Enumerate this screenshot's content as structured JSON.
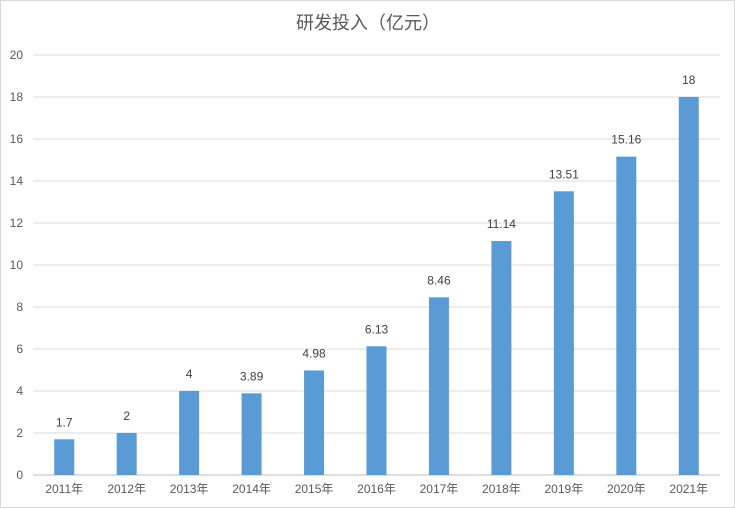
{
  "chart_data": {
    "type": "bar",
    "title": "研发投入（亿元）",
    "categories": [
      "2011年",
      "2012年",
      "2013年",
      "2014年",
      "2015年",
      "2016年",
      "2017年",
      "2018年",
      "2019年",
      "2020年",
      "2021年"
    ],
    "values": [
      1.7,
      2,
      4,
      3.89,
      4.98,
      6.13,
      8.46,
      11.14,
      13.51,
      15.16,
      18
    ],
    "data_labels": [
      "1.7",
      "2",
      "4",
      "3.89",
      "4.98",
      "6.13",
      "8.46",
      "11.14",
      "13.51",
      "15.16",
      "18"
    ],
    "yticks": [
      "0",
      "2",
      "4",
      "6",
      "8",
      "10",
      "12",
      "14",
      "16",
      "18",
      "20"
    ],
    "ylim": [
      0,
      20
    ],
    "grid": true,
    "legend": "none",
    "bar_color": "#5b9bd5"
  }
}
